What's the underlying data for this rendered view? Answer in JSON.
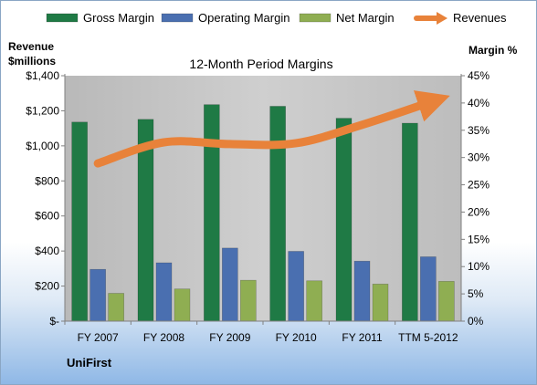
{
  "chart_data": {
    "type": "bar",
    "title": "12-Month Period Margins",
    "left_axis_label_lines": [
      "Revenue",
      "$millions"
    ],
    "right_axis_label": "Margin %",
    "left_ticks": [
      "$-",
      "$200",
      "$400",
      "$600",
      "$800",
      "$1,000",
      "$1,200",
      "$1,400"
    ],
    "right_ticks": [
      "0%",
      "5%",
      "10%",
      "15%",
      "20%",
      "25%",
      "30%",
      "35%",
      "40%",
      "45%"
    ],
    "ylim_left": [
      0,
      1400
    ],
    "ylim_right": [
      0,
      45
    ],
    "categories": [
      "FY 2007",
      "FY 2008",
      "FY 2009",
      "FY 2010",
      "FY 2011",
      "TTM 5-2012"
    ],
    "series": [
      {
        "name": "Gross Margin",
        "axis": "right",
        "kind": "bar",
        "color": "#1f7a45",
        "values": [
          36.5,
          37.0,
          39.7,
          39.4,
          37.2,
          36.3
        ]
      },
      {
        "name": "Operating Margin",
        "axis": "right",
        "kind": "bar",
        "color": "#4a6fb0",
        "values": [
          9.5,
          10.7,
          13.4,
          12.8,
          11.0,
          11.8
        ]
      },
      {
        "name": "Net Margin",
        "axis": "right",
        "kind": "bar",
        "color": "#8fae52",
        "values": [
          5.1,
          5.9,
          7.5,
          7.4,
          6.8,
          7.3
        ]
      },
      {
        "name": "Revenues",
        "axis": "left",
        "kind": "line",
        "color": "#e8823a",
        "values": [
          900,
          1020,
          1010,
          1015,
          1120,
          1245
        ]
      }
    ],
    "legend_position": "top",
    "grid": false,
    "plot_background": "#c0c0c0"
  },
  "company": "UniFirst"
}
